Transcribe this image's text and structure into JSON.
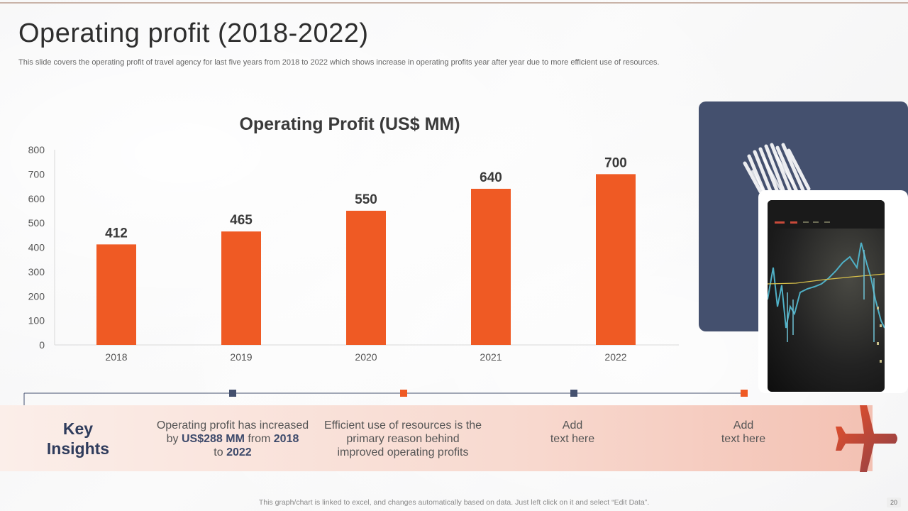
{
  "slide": {
    "title": "Operating profit (2018-2022)",
    "subtitle": "This slide covers the operating profit of travel agency for last five years from 2018 to  2022 which shows increase in operating profits year after year due to more efficient use of resources.",
    "footer": "This graph/chart is linked to excel,  and changes automatically based on data. Just left click on it and select “Edit Data”.",
    "page_number": "20"
  },
  "chart_data": {
    "type": "bar",
    "title": "Operating Profit (US$ MM)",
    "categories": [
      "2018",
      "2019",
      "2020",
      "2021",
      "2022"
    ],
    "values": [
      412,
      465,
      550,
      640,
      700
    ],
    "ylim": [
      0,
      800
    ],
    "yticks": [
      0,
      100,
      200,
      300,
      400,
      500,
      600,
      700,
      800
    ],
    "xlabel": "",
    "ylabel": "",
    "bar_color": "#ef5a24",
    "data_labels": true,
    "grid": false
  },
  "insights": {
    "heading_line1": "Key",
    "heading_line2": "Insights",
    "item1": {
      "line1": "Operating profit has increased",
      "by": "by ",
      "amount": "US$288 MM",
      "from": " from ",
      "year_from": "2018",
      "to": "to ",
      "year_to": "2022"
    },
    "item2": {
      "line1": "Efficient use of resources is the",
      "line2": "primary reason behind",
      "line3": "improved operating profits"
    },
    "item3": {
      "line1": "Add",
      "line2": "text here"
    },
    "item4": {
      "line1": "Add",
      "line2": "text here"
    }
  },
  "colors": {
    "accent_orange": "#ef5a24",
    "navy": "#44506e",
    "text_dark": "#2e2e2e",
    "plane_gradient_start": "#e8502a",
    "plane_gradient_end": "#8c4048"
  },
  "icons": {
    "airplane": "airplane-icon",
    "arrow": "arrow-right-icon"
  }
}
